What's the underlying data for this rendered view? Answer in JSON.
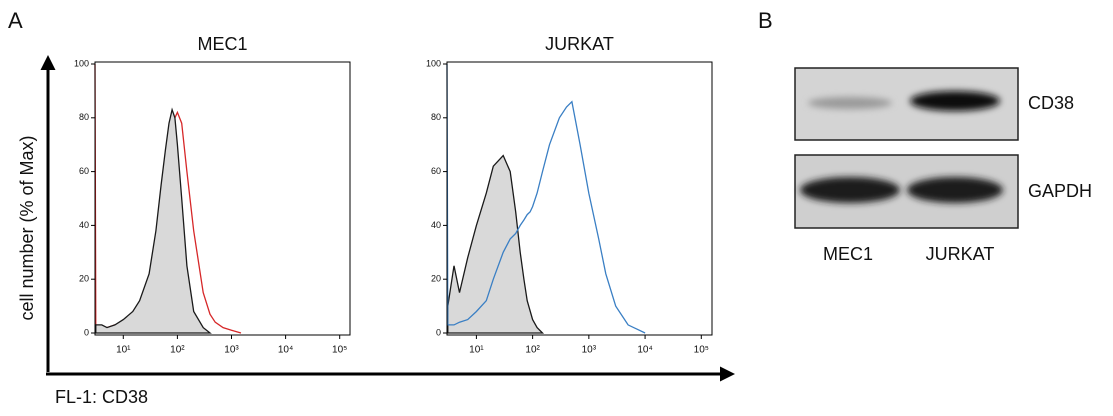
{
  "panel_labels": [
    "A",
    "B"
  ],
  "y_axis_label": "cell number (% of Max)",
  "x_axis_label": "FL-1: CD38",
  "chart_data": [
    {
      "type": "line",
      "title": "MEC1",
      "log_x": true,
      "xlim": [
        3,
        155000
      ],
      "ylim": [
        0,
        100
      ],
      "xticks": [
        {
          "value": 10,
          "label": "10¹"
        },
        {
          "value": 100,
          "label": "10²"
        },
        {
          "value": 1000,
          "label": "10³"
        },
        {
          "value": 10000,
          "label": "10⁴"
        },
        {
          "value": 100000,
          "label": "10⁵"
        }
      ],
      "yticks": [
        0,
        20,
        40,
        60,
        80,
        100
      ],
      "series": [
        {
          "color": "#d62728",
          "x": [
            3,
            3.1,
            4,
            5,
            7,
            10,
            15,
            20,
            30,
            40,
            50,
            60,
            70,
            80,
            90,
            100,
            120,
            150,
            200,
            300,
            400,
            500,
            700,
            1000,
            1500
          ],
          "values": [
            100,
            2,
            2,
            2,
            3,
            4,
            6,
            9,
            18,
            30,
            45,
            58,
            68,
            75,
            80,
            82,
            78,
            60,
            38,
            15,
            7,
            4,
            2,
            1,
            0
          ]
        },
        {
          "color": "#1a1a1a",
          "fill": "#d9d9d9",
          "x": [
            3.1,
            4,
            5,
            7,
            10,
            15,
            20,
            30,
            40,
            50,
            60,
            70,
            80,
            90,
            100,
            120,
            150,
            200,
            300,
            400
          ],
          "values": [
            3,
            3,
            2,
            3,
            5,
            8,
            12,
            22,
            38,
            55,
            68,
            78,
            83,
            80,
            70,
            50,
            25,
            8,
            2,
            0
          ]
        }
      ]
    },
    {
      "type": "line",
      "title": "JURKAT",
      "log_x": true,
      "xlim": [
        3,
        155000
      ],
      "ylim": [
        0,
        100
      ],
      "xticks": [
        {
          "value": 10,
          "label": "10¹"
        },
        {
          "value": 100,
          "label": "10²"
        },
        {
          "value": 1000,
          "label": "10³"
        },
        {
          "value": 10000,
          "label": "10⁴"
        },
        {
          "value": 100000,
          "label": "10⁵"
        }
      ],
      "yticks": [
        0,
        20,
        40,
        60,
        80,
        100
      ],
      "series": [
        {
          "color": "#1a1a1a",
          "fill": "#d9d9d9",
          "x": [
            3.1,
            4,
            5,
            7,
            10,
            15,
            20,
            30,
            40,
            50,
            60,
            70,
            80,
            100,
            120,
            150
          ],
          "values": [
            10,
            25,
            15,
            28,
            40,
            52,
            62,
            66,
            60,
            45,
            30,
            20,
            12,
            5,
            2,
            0
          ]
        },
        {
          "color": "#3a7fc4",
          "x": [
            3,
            3.1,
            4,
            5,
            7,
            10,
            15,
            20,
            30,
            40,
            50,
            60,
            70,
            80,
            90,
            100,
            120,
            150,
            200,
            300,
            400,
            500,
            700,
            1000,
            1500,
            2000,
            3000,
            5000,
            10000
          ],
          "values": [
            100,
            3,
            3,
            4,
            5,
            8,
            12,
            20,
            30,
            35,
            37,
            40,
            42,
            44,
            45,
            47,
            52,
            60,
            70,
            80,
            84,
            86,
            70,
            52,
            35,
            22,
            10,
            3,
            0
          ]
        }
      ]
    }
  ],
  "blot": {
    "rows": [
      "CD38",
      "GAPDH"
    ],
    "lanes": [
      "MEC1",
      "JURKAT"
    ]
  }
}
